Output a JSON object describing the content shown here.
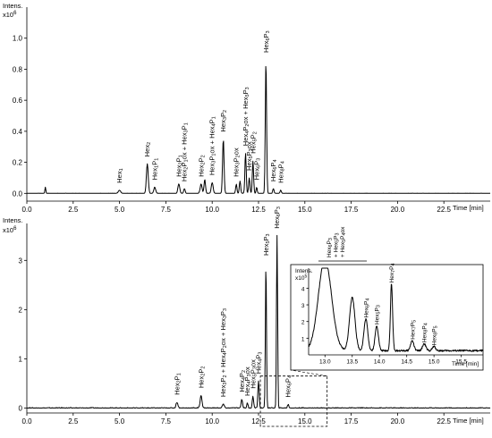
{
  "chart_data": [
    {
      "type": "line",
      "ylabel": "Intens.",
      "yunit": "x10^6",
      "xlabel": "Time [min]",
      "xlim": [
        0,
        25
      ],
      "ylim": [
        -0.05,
        1.2
      ],
      "xticks": [
        {
          "v": 0.0,
          "t": "0.0"
        },
        {
          "v": 2.5,
          "t": "2.5"
        },
        {
          "v": 5.0,
          "t": "5.0"
        },
        {
          "v": 7.5,
          "t": "7.5"
        },
        {
          "v": 10.0,
          "t": "10.0"
        },
        {
          "v": 12.5,
          "t": "12.5"
        },
        {
          "v": 15.0,
          "t": "15.0"
        },
        {
          "v": 17.5,
          "t": "17.5"
        },
        {
          "v": 20.0,
          "t": "20.0"
        },
        {
          "v": 22.5,
          "t": "22.5"
        }
      ],
      "yticks": [
        {
          "v": 0.0,
          "t": "0.0"
        },
        {
          "v": 0.2,
          "t": "0.2"
        },
        {
          "v": 0.4,
          "t": "0.4"
        },
        {
          "v": 0.6,
          "t": "0.6"
        },
        {
          "v": 0.8,
          "t": "0.8"
        },
        {
          "v": 1.0,
          "t": "1.0"
        }
      ],
      "peaks": [
        {
          "x": 1.0,
          "y": 0.04,
          "w": 0.05
        },
        {
          "x": 5.0,
          "y": 0.02,
          "w": 0.12,
          "label": "Hex₁"
        },
        {
          "x": 6.5,
          "y": 0.19,
          "w": 0.1,
          "label": "Hex₂"
        },
        {
          "x": 6.9,
          "y": 0.04,
          "w": 0.1,
          "label": "Hex₁P₁"
        },
        {
          "x": 8.2,
          "y": 0.06,
          "w": 0.1,
          "label": "Hex₂P₁"
        },
        {
          "x": 8.5,
          "y": 0.03,
          "w": 0.08,
          "label": "Hex₂P₁ox + Hex₃P₁"
        },
        {
          "x": 9.4,
          "y": 0.06,
          "w": 0.1,
          "label": "Hex₂P₂"
        },
        {
          "x": 9.6,
          "y": 0.09,
          "w": 0.08
        },
        {
          "x": 10.0,
          "y": 0.07,
          "w": 0.1,
          "label": "Hex₃P₁ox + Hex₄P₁"
        },
        {
          "x": 10.6,
          "y": 0.35,
          "w": 0.08,
          "label": "Hex₃P₂"
        },
        {
          "x": 11.3,
          "y": 0.06,
          "w": 0.07,
          "label": "Hex₃P₂ox"
        },
        {
          "x": 11.5,
          "y": 0.08,
          "w": 0.07
        },
        {
          "x": 11.8,
          "y": 0.26,
          "w": 0.07,
          "label": "Hex₄P₂ox + Hex₅P₃"
        },
        {
          "x": 12.0,
          "y": 0.1,
          "w": 0.07,
          "label": "Hex₅P₃ox"
        },
        {
          "x": 12.2,
          "y": 0.21,
          "w": 0.07,
          "label": "Hex₅P₂"
        },
        {
          "x": 12.4,
          "y": 0.04,
          "w": 0.06,
          "label": "Hex₆P₃"
        },
        {
          "x": 12.9,
          "y": 0.86,
          "w": 0.07,
          "label": "Hex₆P₃"
        },
        {
          "x": 13.3,
          "y": 0.03,
          "w": 0.07,
          "label": "Hex₆P₄"
        },
        {
          "x": 13.7,
          "y": 0.02,
          "w": 0.07,
          "label": "Hex₈P₄"
        }
      ]
    },
    {
      "type": "line",
      "ylabel": "Intens.",
      "yunit": "x10^6",
      "xlabel": "Time [min]",
      "xlim": [
        0,
        25
      ],
      "ylim": [
        -0.1,
        3.75
      ],
      "xticks": [
        {
          "v": 0.0,
          "t": "0.0"
        },
        {
          "v": 2.5,
          "t": "2.5"
        },
        {
          "v": 5.0,
          "t": "5.0"
        },
        {
          "v": 7.5,
          "t": "7.5"
        },
        {
          "v": 10.0,
          "t": "10.0"
        },
        {
          "v": 12.5,
          "t": "12.5"
        },
        {
          "v": 15.0,
          "t": "15.0"
        },
        {
          "v": 17.5,
          "t": "17.5"
        },
        {
          "v": 20.0,
          "t": "20.0"
        },
        {
          "v": 22.5,
          "t": "22.5"
        }
      ],
      "yticks": [
        {
          "v": 0,
          "t": "0"
        },
        {
          "v": 1,
          "t": "1"
        },
        {
          "v": 2,
          "t": "2"
        },
        {
          "v": 3,
          "t": "3"
        }
      ],
      "peaks": [
        {
          "x": 8.1,
          "y": 0.12,
          "w": 0.1,
          "label": "Hex₂P₁"
        },
        {
          "x": 9.4,
          "y": 0.26,
          "w": 0.1,
          "label": "Hex₂P₂"
        },
        {
          "x": 10.6,
          "y": 0.08,
          "w": 0.1,
          "label": "Hex₃P₂ + Hex₄P₂ox + Hex₃P₃"
        },
        {
          "x": 11.6,
          "y": 0.18,
          "w": 0.08,
          "label": "Hex₄P₂"
        },
        {
          "x": 11.9,
          "y": 0.1,
          "w": 0.07,
          "label": "Hex₄P₃ox"
        },
        {
          "x": 12.2,
          "y": 0.25,
          "w": 0.07,
          "label": "Hex₅P₃ox"
        },
        {
          "x": 12.5,
          "y": 0.55,
          "w": 0.07,
          "label": "Hex₄P₃"
        },
        {
          "x": 12.9,
          "y": 2.95,
          "w": 0.06,
          "label": "Hex₅P₃"
        },
        {
          "x": 13.5,
          "y": 3.5,
          "w": 0.06,
          "label": "Hex₆P₃"
        },
        {
          "x": 14.1,
          "y": 0.07,
          "w": 0.08,
          "label": "Hex₆P₄"
        }
      ],
      "zoom_region": {
        "x": [
          12.6,
          16.2
        ],
        "y": [
          0,
          0.65
        ]
      }
    },
    {
      "type": "line",
      "role": "inset",
      "ylabel": "Intens.",
      "yunit": "x10^5",
      "xlabel": "Time [min]",
      "xlim": [
        12.7,
        15.9
      ],
      "ylim": [
        0,
        5.2
      ],
      "xticks": [
        {
          "v": 13.0,
          "t": "13.0"
        },
        {
          "v": 13.5,
          "t": "13.5"
        },
        {
          "v": 14.0,
          "t": "14.0"
        },
        {
          "v": 14.5,
          "t": "14.5"
        },
        {
          "v": 15.0,
          "t": "15.0"
        },
        {
          "v": 15.5,
          "t": "15.5"
        }
      ],
      "yticks": [
        {
          "v": 1,
          "t": "1"
        },
        {
          "v": 2,
          "t": "2"
        },
        {
          "v": 3,
          "t": "3"
        },
        {
          "v": 4,
          "t": "4"
        }
      ],
      "group_label": [
        "Hex₆P₃",
        "+ Hex₅P₃",
        "+ Hex₅P₄ox"
      ],
      "peaks": [
        {
          "x": 13.75,
          "y": 1.9,
          "w": 0.07,
          "label": "Hex₆P₄"
        },
        {
          "x": 13.95,
          "y": 1.5,
          "w": 0.06,
          "label": "Hex₅P₃"
        },
        {
          "x": 14.22,
          "y": 4.0,
          "w": 0.04,
          "label": "Hex₇P₄"
        },
        {
          "x": 14.6,
          "y": 0.6,
          "w": 0.06,
          "label": "Hex₇P₅"
        },
        {
          "x": 14.82,
          "y": 0.42,
          "w": 0.06,
          "label": "Hex₈P₄"
        },
        {
          "x": 15.0,
          "y": 0.25,
          "w": 0.06,
          "label": "Hex₈P₅"
        }
      ]
    }
  ]
}
